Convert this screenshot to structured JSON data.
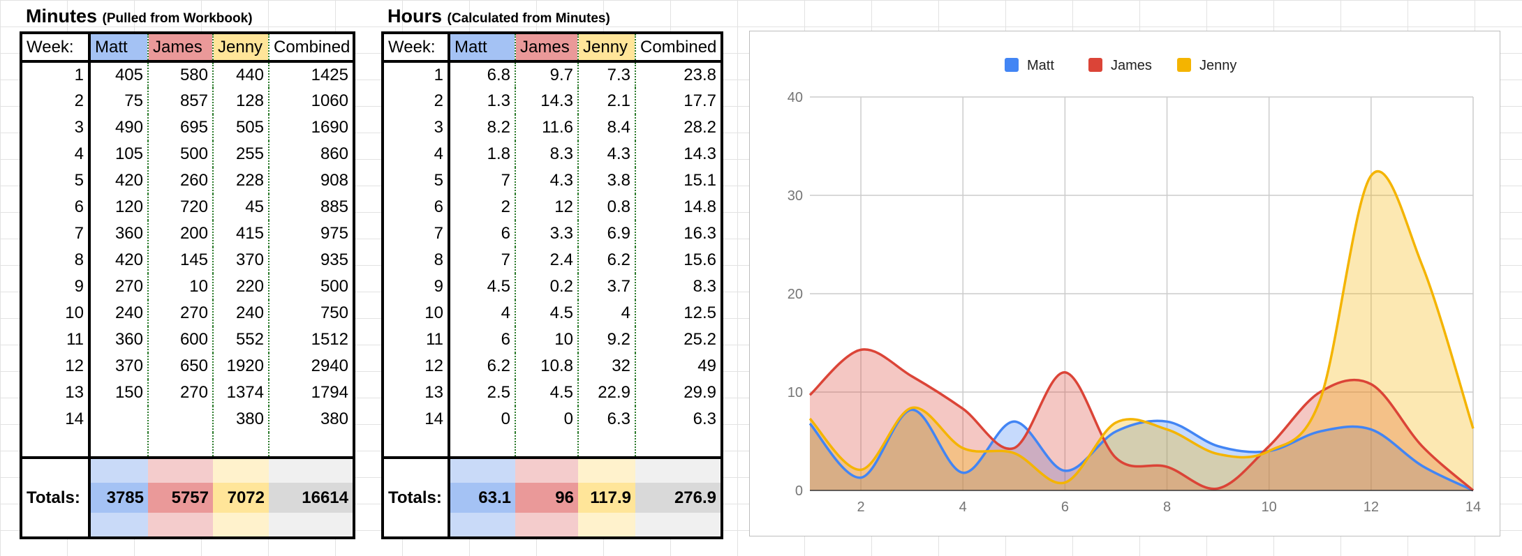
{
  "minutes_table": {
    "title": "Minutes",
    "subtitle": "(Pulled from Workbook)",
    "headers": [
      "Week:",
      "Matt",
      "James",
      "Jenny",
      "Combined"
    ],
    "rows": [
      [
        "1",
        "405",
        "580",
        "440",
        "1425"
      ],
      [
        "2",
        "75",
        "857",
        "128",
        "1060"
      ],
      [
        "3",
        "490",
        "695",
        "505",
        "1690"
      ],
      [
        "4",
        "105",
        "500",
        "255",
        "860"
      ],
      [
        "5",
        "420",
        "260",
        "228",
        "908"
      ],
      [
        "6",
        "120",
        "720",
        "45",
        "885"
      ],
      [
        "7",
        "360",
        "200",
        "415",
        "975"
      ],
      [
        "8",
        "420",
        "145",
        "370",
        "935"
      ],
      [
        "9",
        "270",
        "10",
        "220",
        "500"
      ],
      [
        "10",
        "240",
        "270",
        "240",
        "750"
      ],
      [
        "11",
        "360",
        "600",
        "552",
        "1512"
      ],
      [
        "12",
        "370",
        "650",
        "1920",
        "2940"
      ],
      [
        "13",
        "150",
        "270",
        "1374",
        "1794"
      ],
      [
        "14",
        "",
        "",
        "380",
        "380"
      ]
    ],
    "totals_label": "Totals:",
    "totals": [
      "3785",
      "5757",
      "7072",
      "16614"
    ]
  },
  "hours_table": {
    "title": "Hours",
    "subtitle": "(Calculated from Minutes)",
    "headers": [
      "Week:",
      "Matt",
      "James",
      "Jenny",
      "Combined"
    ],
    "rows": [
      [
        "1",
        "6.8",
        "9.7",
        "7.3",
        "23.8"
      ],
      [
        "2",
        "1.3",
        "14.3",
        "2.1",
        "17.7"
      ],
      [
        "3",
        "8.2",
        "11.6",
        "8.4",
        "28.2"
      ],
      [
        "4",
        "1.8",
        "8.3",
        "4.3",
        "14.3"
      ],
      [
        "5",
        "7",
        "4.3",
        "3.8",
        "15.1"
      ],
      [
        "6",
        "2",
        "12",
        "0.8",
        "14.8"
      ],
      [
        "7",
        "6",
        "3.3",
        "6.9",
        "16.3"
      ],
      [
        "8",
        "7",
        "2.4",
        "6.2",
        "15.6"
      ],
      [
        "9",
        "4.5",
        "0.2",
        "3.7",
        "8.3"
      ],
      [
        "10",
        "4",
        "4.5",
        "4",
        "12.5"
      ],
      [
        "11",
        "6",
        "10",
        "9.2",
        "25.2"
      ],
      [
        "12",
        "6.2",
        "10.8",
        "32",
        "49"
      ],
      [
        "13",
        "2.5",
        "4.5",
        "22.9",
        "29.9"
      ],
      [
        "14",
        "0",
        "0",
        "6.3",
        "6.3"
      ]
    ],
    "totals_label": "Totals:",
    "totals": [
      "63.1",
      "96",
      "117.9",
      "276.9"
    ]
  },
  "colors": {
    "matt": "#4285f4",
    "james": "#db4437",
    "jenny": "#f4b400"
  },
  "chart_data": {
    "type": "area",
    "smooth": true,
    "legend": "top",
    "grid": true,
    "x": [
      1,
      2,
      3,
      4,
      5,
      6,
      7,
      8,
      9,
      10,
      11,
      12,
      13,
      14
    ],
    "xticks": [
      2,
      4,
      6,
      8,
      10,
      12,
      14
    ],
    "yticks": [
      0,
      10,
      20,
      30,
      40
    ],
    "xlim": [
      1,
      14
    ],
    "ylim": [
      0,
      40
    ],
    "series": [
      {
        "name": "Matt",
        "color": "#4285f4",
        "values": [
          6.8,
          1.3,
          8.2,
          1.8,
          7,
          2,
          6,
          7,
          4.5,
          4,
          6,
          6.2,
          2.5,
          0
        ]
      },
      {
        "name": "James",
        "color": "#db4437",
        "values": [
          9.7,
          14.3,
          11.6,
          8.3,
          4.3,
          12,
          3.3,
          2.4,
          0.2,
          4.5,
          10,
          10.8,
          4.5,
          0
        ]
      },
      {
        "name": "Jenny",
        "color": "#f4b400",
        "values": [
          7.3,
          2.1,
          8.4,
          4.3,
          3.8,
          0.8,
          6.9,
          6.2,
          3.7,
          4,
          9.2,
          32,
          22.9,
          6.3
        ]
      }
    ]
  }
}
